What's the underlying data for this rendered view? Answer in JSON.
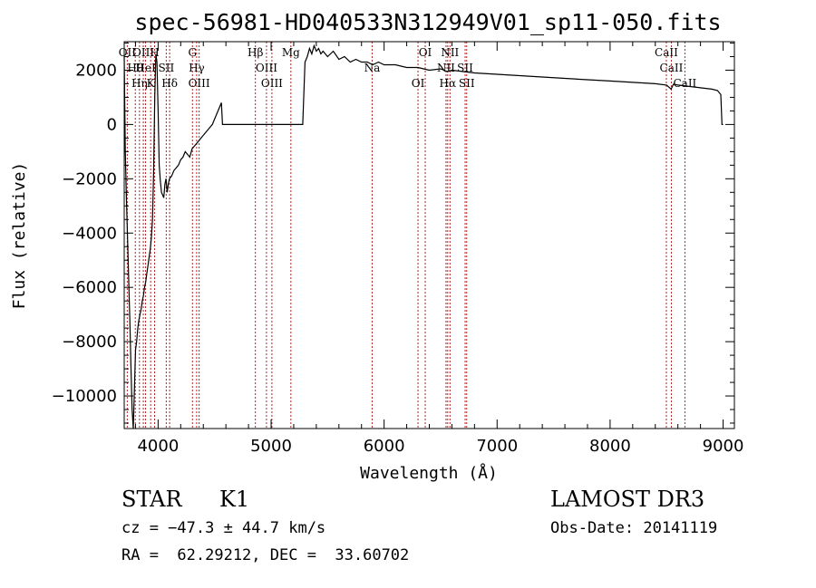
{
  "chart_data": {
    "type": "line",
    "title": "spec-56981-HD040533N312949V01_sp11-050.fits",
    "xlabel": "Wavelength (Å)",
    "ylabel": "Flux (relative)",
    "xlim": [
      3700,
      9100
    ],
    "ylim": [
      -11200,
      3050
    ],
    "xticks": [
      4000,
      5000,
      6000,
      7000,
      8000,
      9000
    ],
    "xtick_labels": [
      "4000",
      "5000",
      "6000",
      "7000",
      "8000",
      "9000"
    ],
    "yticks": [
      -10000,
      -8000,
      -6000,
      -4000,
      -2000,
      0,
      2000
    ],
    "ytick_labels": [
      "−10000",
      "−8000",
      "−6000",
      "−4000",
      "−2000",
      "0",
      "2000"
    ],
    "grid": false,
    "series": [
      {
        "x": [
          3700,
          3710,
          3720,
          3730,
          3740,
          3750,
          3760,
          3770,
          3780,
          3790,
          3800,
          3810,
          3820,
          3830,
          3840,
          3850,
          3860,
          3870,
          3880,
          3890,
          3900,
          3910,
          3920,
          3930,
          3940,
          3950,
          3960,
          3970,
          3980,
          3990,
          4000,
          4010,
          4020,
          4030,
          4040,
          4050,
          4060,
          4070,
          4080,
          4090,
          4100,
          4120,
          4140,
          4160,
          4180,
          4200,
          4220,
          4240,
          4260,
          4280,
          4300,
          4320,
          4340,
          4360,
          4380,
          4400,
          4420,
          4440,
          4460,
          4480,
          4500,
          4520,
          4540,
          4560,
          4570,
          5280,
          5300,
          5320,
          5340,
          5360,
          5380,
          5400,
          5420,
          5440,
          5460,
          5480,
          5500,
          5550,
          5600,
          5650,
          5700,
          5750,
          5800,
          5850,
          5900,
          5950,
          6000,
          6100,
          6200,
          6300,
          6400,
          6500,
          6560,
          6600,
          6700,
          6800,
          7000,
          7200,
          7400,
          7600,
          7800,
          8000,
          8200,
          8400,
          8500,
          8540,
          8560,
          8600,
          8700,
          8800,
          8900,
          8950,
          8980,
          8990,
          9000
        ],
        "y": [
          2500,
          -1000,
          -2800,
          -4200,
          -5800,
          -7200,
          -9000,
          -10500,
          -11200,
          -9800,
          -8300,
          -8000,
          -7500,
          -7200,
          -7000,
          -6800,
          -6500,
          -6300,
          -6000,
          -5800,
          -5500,
          -5200,
          -4900,
          -4600,
          -4200,
          -3500,
          -1800,
          1000,
          2600,
          2300,
          500,
          -1500,
          -2100,
          -2500,
          -2600,
          -2700,
          -2200,
          -2000,
          -2500,
          -2200,
          -2000,
          -1900,
          -1700,
          -1600,
          -1500,
          -1300,
          -1200,
          -1000,
          -1100,
          -1200,
          -900,
          -800,
          -700,
          -600,
          -500,
          -400,
          -300,
          -200,
          -100,
          0,
          200,
          400,
          600,
          800,
          0,
          0,
          2300,
          2500,
          2800,
          2600,
          2900,
          2700,
          2800,
          2600,
          2700,
          2600,
          2500,
          2700,
          2400,
          2500,
          2300,
          2400,
          2300,
          2300,
          2200,
          2300,
          2200,
          2200,
          2100,
          2100,
          2000,
          2050,
          1950,
          2000,
          1950,
          1900,
          1850,
          1800,
          1750,
          1700,
          1650,
          1600,
          1550,
          1500,
          1450,
          1300,
          1480,
          1450,
          1400,
          1350,
          1300,
          1250,
          1100,
          0,
          0
        ]
      }
    ],
    "line_markers": [
      {
        "x": 3727,
        "label": "OII"
      },
      {
        "x": 3798,
        "label": "Hθ"
      },
      {
        "x": 3835,
        "label": "Hη"
      },
      {
        "x": 3869,
        "label": "OIII"
      },
      {
        "x": 3889,
        "label": "HeI"
      },
      {
        "x": 3934,
        "label": "K"
      },
      {
        "x": 3969,
        "label": "H"
      },
      {
        "x": 4072,
        "label": "SII"
      },
      {
        "x": 4102,
        "label": "Hδ"
      },
      {
        "x": 4304,
        "label": "G"
      },
      {
        "x": 4341,
        "label": "Hγ"
      },
      {
        "x": 4363,
        "label": "OIII"
      },
      {
        "x": 4861,
        "label": "Hβ"
      },
      {
        "x": 4959,
        "label": "OIII"
      },
      {
        "x": 5007,
        "label": "OIII"
      },
      {
        "x": 5175,
        "label": "Mg"
      },
      {
        "x": 5894,
        "label": "Na"
      },
      {
        "x": 6300,
        "label": "OI"
      },
      {
        "x": 6364,
        "label": "OI"
      },
      {
        "x": 6548,
        "label": "NII"
      },
      {
        "x": 6563,
        "label": "Hα"
      },
      {
        "x": 6583,
        "label": "NII"
      },
      {
        "x": 6717,
        "label": "SII"
      },
      {
        "x": 6731,
        "label": "SII"
      },
      {
        "x": 8498,
        "label": "CaII"
      },
      {
        "x": 8542,
        "label": "CaII"
      },
      {
        "x": 8662,
        "label": "CaII"
      }
    ]
  },
  "info": {
    "object_class": "STAR",
    "subclass": "K1",
    "survey": "LAMOST DR3",
    "cz": "cz = −47.3 ± 44.7 km/s",
    "obs_date": "Obs-Date: 20141119",
    "coords": "RA =  62.29212, DEC =  33.60702"
  }
}
